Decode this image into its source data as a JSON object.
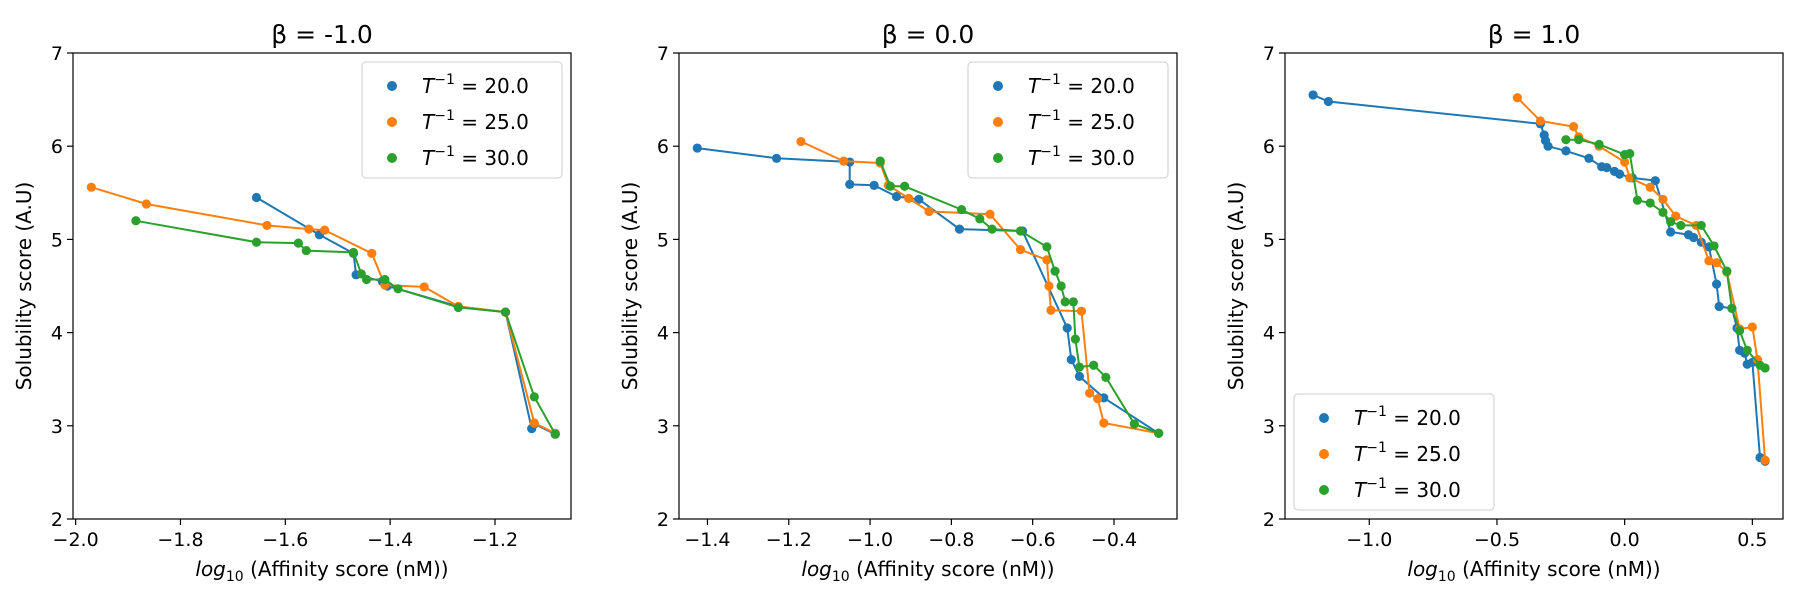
{
  "figure": {
    "xlabel_prefix": "log",
    "xlabel_sub": "10",
    "xlabel_suffix": " (Affinity score (nM))",
    "ylabel": "Solubility score (A.U)"
  },
  "legend_entries": [
    {
      "prefix": "T",
      "sup": "−1",
      "suffix": " = 20.0",
      "color": "#1f77b4"
    },
    {
      "prefix": "T",
      "sup": "−1",
      "suffix": " = 25.0",
      "color": "#ff7f0e"
    },
    {
      "prefix": "T",
      "sup": "−1",
      "suffix": " = 30.0",
      "color": "#2ca02c"
    }
  ],
  "chart_data": [
    {
      "type": "line",
      "title": "β = -1.0",
      "xlim": [
        -2.005,
        -1.055
      ],
      "ylim": [
        2,
        7
      ],
      "xticks": [
        -2.0,
        -1.8,
        -1.6,
        -1.4,
        -1.2
      ],
      "xtick_labels": [
        "−2.0",
        "−1.8",
        "−1.6",
        "−1.4",
        "−1.2"
      ],
      "yticks": [
        2,
        3,
        4,
        5,
        6,
        7
      ],
      "ytick_labels": [
        "2",
        "3",
        "4",
        "5",
        "6",
        "7"
      ],
      "legend_loc": "upper right",
      "series": [
        {
          "name": "T^-1 = 20.0",
          "color": "#1f77b4",
          "x": [
            -1.655,
            -1.535,
            -1.47,
            -1.465,
            -1.415,
            -1.405,
            -1.27,
            -1.18,
            -1.13,
            -1.125,
            -1.085
          ],
          "y": [
            5.45,
            5.05,
            4.85,
            4.62,
            4.55,
            4.5,
            4.28,
            4.22,
            2.97,
            3.02,
            2.91
          ]
        },
        {
          "name": "T^-1 = 25.0",
          "color": "#ff7f0e",
          "x": [
            -1.97,
            -1.865,
            -1.635,
            -1.555,
            -1.525,
            -1.435,
            -1.41,
            -1.335,
            -1.27,
            -1.18,
            -1.125,
            -1.085
          ],
          "y": [
            5.56,
            5.38,
            5.15,
            5.11,
            5.1,
            4.85,
            4.51,
            4.49,
            4.28,
            4.22,
            3.03,
            2.92
          ]
        },
        {
          "name": "T^-1 = 30.0",
          "color": "#2ca02c",
          "x": [
            -1.885,
            -1.655,
            -1.575,
            -1.56,
            -1.47,
            -1.455,
            -1.445,
            -1.41,
            -1.385,
            -1.27,
            -1.18,
            -1.125,
            -1.085
          ],
          "y": [
            5.2,
            4.97,
            4.96,
            4.88,
            4.86,
            4.63,
            4.57,
            4.57,
            4.47,
            4.27,
            4.22,
            3.31,
            2.91
          ]
        }
      ]
    },
    {
      "type": "line",
      "title": "β = 0.0",
      "xlim": [
        -1.47,
        -0.245
      ],
      "ylim": [
        2,
        7
      ],
      "xticks": [
        -1.4,
        -1.2,
        -1.0,
        -0.8,
        -0.6,
        -0.4
      ],
      "xtick_labels": [
        "−1.4",
        "−1.2",
        "−1.0",
        "−0.8",
        "−0.6",
        "−0.4"
      ],
      "yticks": [
        2,
        3,
        4,
        5,
        6,
        7
      ],
      "ytick_labels": [
        "2",
        "3",
        "4",
        "5",
        "6",
        "7"
      ],
      "legend_loc": "upper right",
      "series": [
        {
          "name": "T^-1 = 20.0",
          "color": "#1f77b4",
          "x": [
            -1.425,
            -1.23,
            -1.05,
            -1.05,
            -0.99,
            -0.935,
            -0.88,
            -0.78,
            -0.625,
            -0.515,
            -0.505,
            -0.485,
            -0.425,
            -0.29
          ],
          "y": [
            5.98,
            5.87,
            5.83,
            5.59,
            5.58,
            5.46,
            5.43,
            5.11,
            5.09,
            4.05,
            3.71,
            3.53,
            3.3,
            2.92
          ]
        },
        {
          "name": "T^-1 = 25.0",
          "color": "#ff7f0e",
          "x": [
            -1.17,
            -1.065,
            -0.975,
            -0.955,
            -0.905,
            -0.855,
            -0.705,
            -0.63,
            -0.565,
            -0.56,
            -0.555,
            -0.48,
            -0.46,
            -0.44,
            -0.425,
            -0.29
          ],
          "y": [
            6.05,
            5.84,
            5.82,
            5.58,
            5.44,
            5.3,
            5.27,
            4.89,
            4.78,
            4.5,
            4.24,
            4.23,
            3.35,
            3.29,
            3.03,
            2.92
          ]
        },
        {
          "name": "T^-1 = 30.0",
          "color": "#2ca02c",
          "x": [
            -0.975,
            -0.95,
            -0.915,
            -0.775,
            -0.73,
            -0.7,
            -0.63,
            -0.565,
            -0.545,
            -0.53,
            -0.52,
            -0.5,
            -0.495,
            -0.485,
            -0.45,
            -0.42,
            -0.35,
            -0.29
          ],
          "y": [
            5.84,
            5.57,
            5.57,
            5.32,
            5.22,
            5.11,
            5.09,
            4.92,
            4.66,
            4.5,
            4.33,
            4.33,
            3.93,
            3.63,
            3.65,
            3.52,
            3.02,
            2.92
          ]
        }
      ]
    },
    {
      "type": "line",
      "title": "β = 1.0",
      "xlim": [
        -1.33,
        0.62
      ],
      "ylim": [
        2,
        7
      ],
      "xticks": [
        -1.0,
        -0.5,
        0.0,
        0.5
      ],
      "xtick_labels": [
        "−1.0",
        "−0.5",
        "0.0",
        "0.5"
      ],
      "yticks": [
        2,
        3,
        4,
        5,
        6,
        7
      ],
      "ytick_labels": [
        "2",
        "3",
        "4",
        "5",
        "6",
        "7"
      ],
      "legend_loc": "lower left",
      "series": [
        {
          "name": "T^-1 = 20.0",
          "color": "#1f77b4",
          "x": [
            -1.22,
            -1.16,
            -0.33,
            -0.315,
            -0.31,
            -0.3,
            -0.23,
            -0.14,
            -0.09,
            -0.07,
            -0.04,
            -0.02,
            0.03,
            0.12,
            0.18,
            0.25,
            0.27,
            0.3,
            0.33,
            0.36,
            0.37,
            0.42,
            0.44,
            0.45,
            0.47,
            0.48,
            0.5,
            0.53,
            0.55
          ],
          "y": [
            6.55,
            6.48,
            6.24,
            6.12,
            6.06,
            6.0,
            5.95,
            5.87,
            5.78,
            5.77,
            5.73,
            5.7,
            5.66,
            5.63,
            5.08,
            5.05,
            5.02,
            4.97,
            4.92,
            4.52,
            4.28,
            4.26,
            4.05,
            3.81,
            3.78,
            3.66,
            3.68,
            2.66,
            2.62
          ]
        },
        {
          "name": "T^-1 = 25.0",
          "color": "#ff7f0e",
          "x": [
            -0.42,
            -0.33,
            -0.2,
            -0.18,
            -0.1,
            0.0,
            0.02,
            0.1,
            0.15,
            0.2,
            0.28,
            0.33,
            0.36,
            0.4,
            0.45,
            0.5,
            0.52,
            0.55
          ],
          "y": [
            6.52,
            6.27,
            6.21,
            6.1,
            6.0,
            5.83,
            5.66,
            5.56,
            5.43,
            5.25,
            5.15,
            4.77,
            4.75,
            4.65,
            4.04,
            4.06,
            3.71,
            2.63
          ]
        },
        {
          "name": "T^-1 = 30.0",
          "color": "#2ca02c",
          "x": [
            -0.23,
            -0.18,
            -0.1,
            0.0,
            0.02,
            0.05,
            0.1,
            0.15,
            0.18,
            0.22,
            0.3,
            0.35,
            0.4,
            0.42,
            0.45,
            0.48,
            0.53,
            0.55
          ],
          "y": [
            6.07,
            6.07,
            6.02,
            5.91,
            5.92,
            5.42,
            5.39,
            5.29,
            5.19,
            5.15,
            5.15,
            4.93,
            4.66,
            4.26,
            4.02,
            3.81,
            3.65,
            3.62
          ]
        }
      ]
    }
  ]
}
